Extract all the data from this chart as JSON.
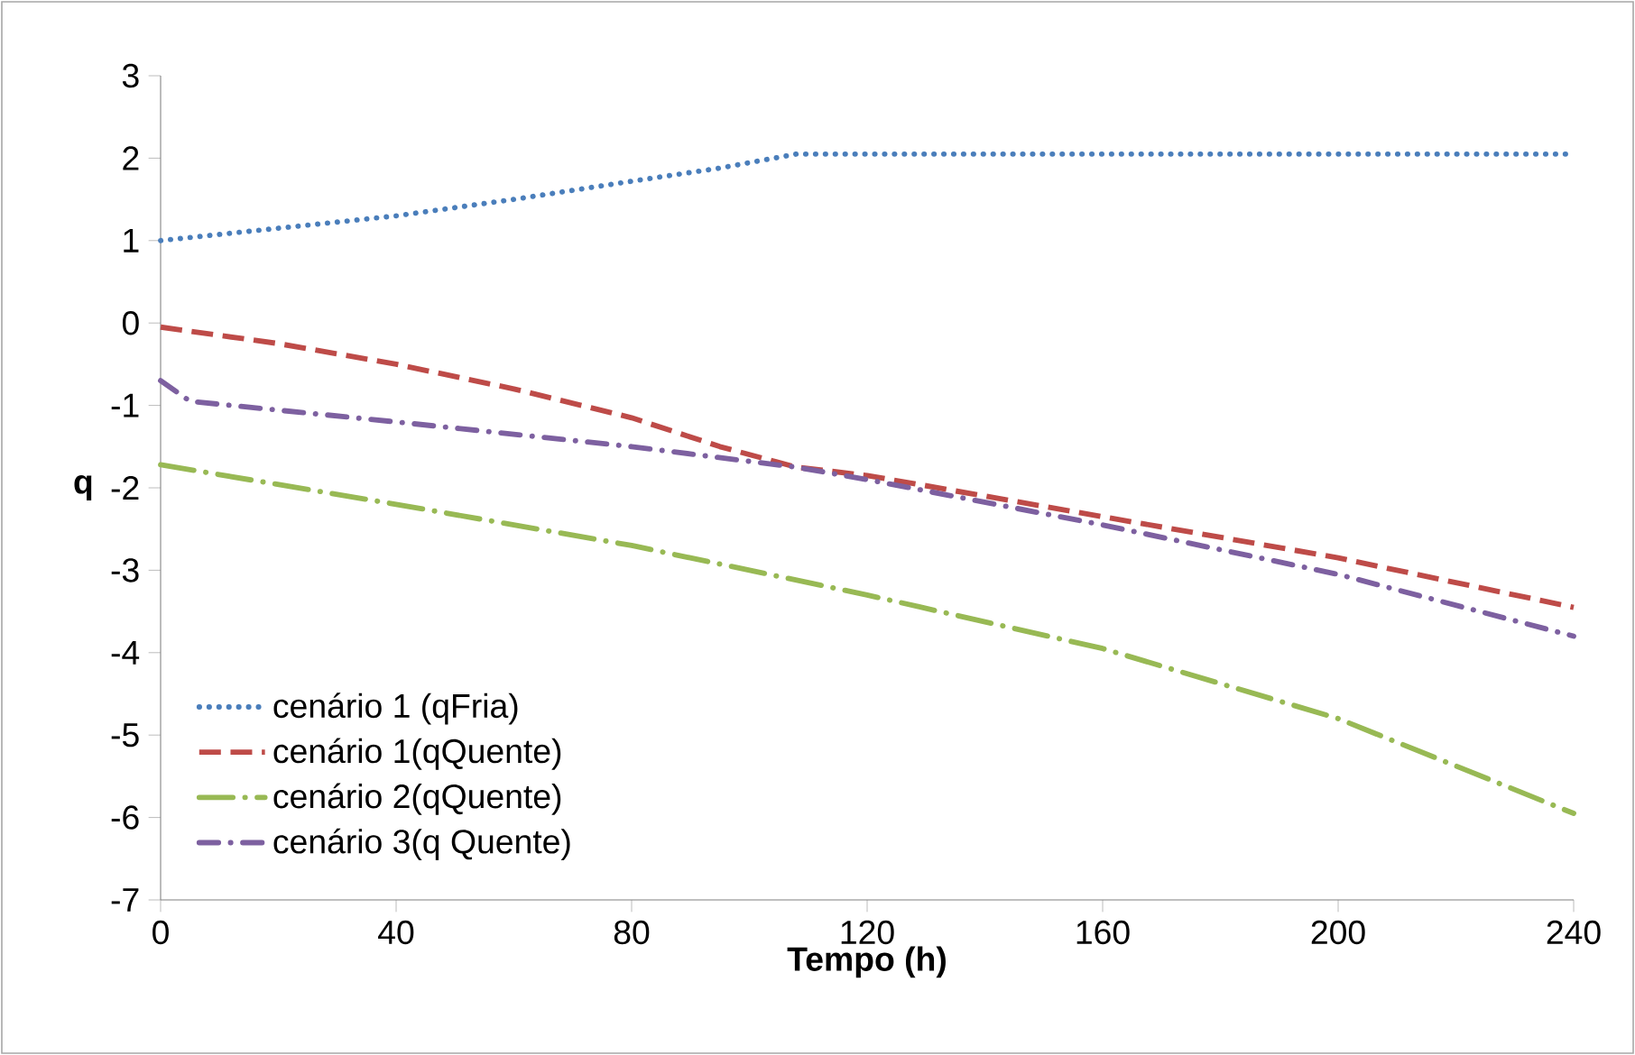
{
  "chart_data": {
    "type": "line",
    "xlabel": "Tempo (h)",
    "ylabel": "q",
    "xlim": [
      0,
      240
    ],
    "ylim": [
      -7,
      3
    ],
    "xticks": [
      0,
      40,
      80,
      120,
      160,
      200,
      240
    ],
    "yticks": [
      -7,
      -6,
      -5,
      -4,
      -3,
      -2,
      -1,
      0,
      1,
      2,
      3
    ],
    "legend": "bottom left",
    "grid": false,
    "series": [
      {
        "name": "cenário 1 (qFria)",
        "color": "#4a7ebb",
        "line_style": "dotted",
        "x": [
          0,
          20,
          40,
          60,
          80,
          95,
          108,
          120,
          160,
          200,
          240
        ],
        "values": [
          1,
          1.15,
          1.3,
          1.5,
          1.72,
          1.88,
          2.05,
          2.05,
          2.05,
          2.05,
          2.05
        ]
      },
      {
        "name": "cenário 1(qQuente)",
        "color": "#be4b48",
        "line_style": "dashed",
        "x": [
          0,
          20,
          40,
          60,
          80,
          95,
          108,
          120,
          160,
          200,
          240
        ],
        "values": [
          -0.05,
          -0.25,
          -0.5,
          -0.8,
          -1.15,
          -1.5,
          -1.75,
          -1.85,
          -2.35,
          -2.85,
          -3.45
        ]
      },
      {
        "name": "cenário 2(qQuente)",
        "color": "#98b954",
        "line_style": "longdashdot",
        "x": [
          0,
          40,
          80,
          120,
          160,
          200,
          240
        ],
        "values": [
          -1.72,
          -2.2,
          -2.7,
          -3.3,
          -3.95,
          -4.8,
          -5.95
        ]
      },
      {
        "name": "cenário 3(q Quente)",
        "color": "#7d60a0",
        "line_style": "dashdot",
        "x": [
          0,
          5,
          40,
          80,
          108,
          120,
          160,
          200,
          240
        ],
        "values": [
          -0.7,
          -0.95,
          -1.2,
          -1.5,
          -1.75,
          -1.9,
          -2.45,
          -3.05,
          -3.8
        ]
      }
    ]
  }
}
